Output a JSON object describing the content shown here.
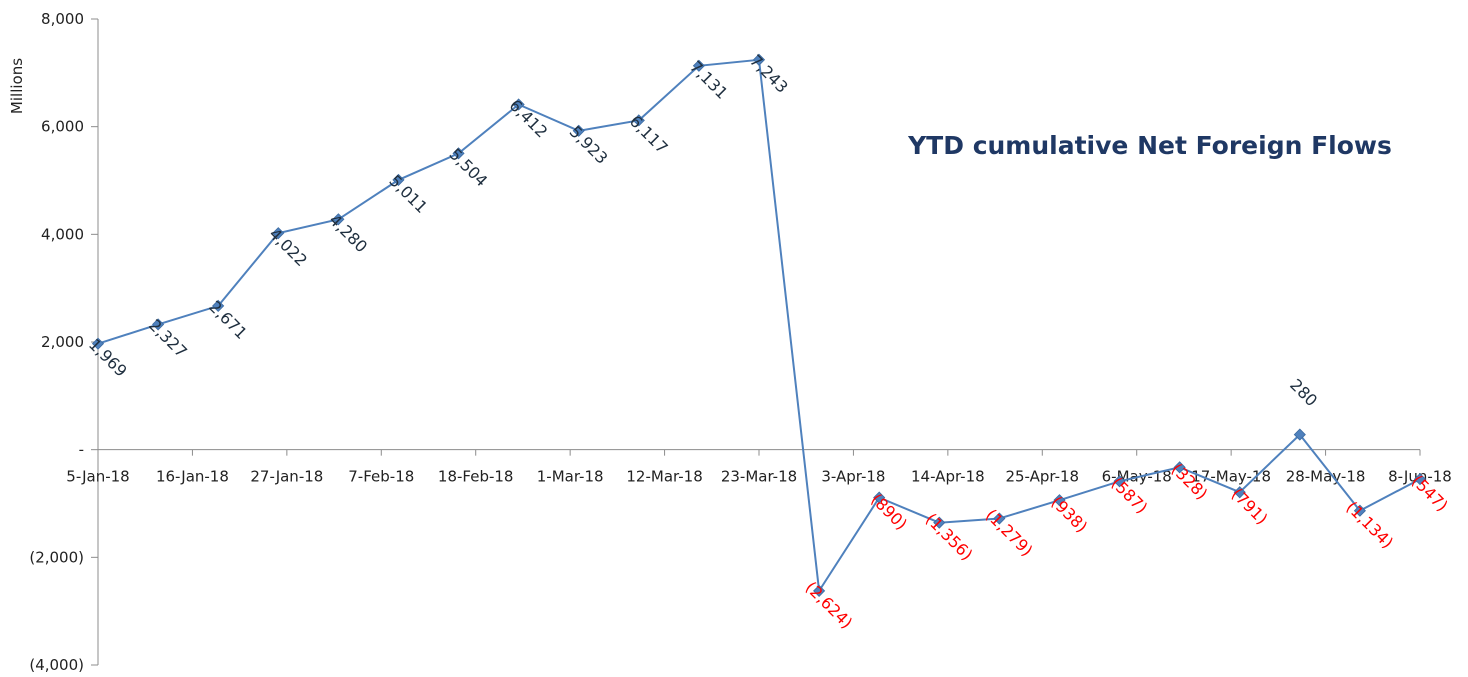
{
  "chart_data": {
    "type": "line",
    "title": "YTD cumulative Net Foreign Flows",
    "xlabel": "",
    "ylabel": "Millions",
    "ylim": [
      -4000,
      8000
    ],
    "y_ticks": [
      {
        "value": 8000,
        "label": "8,000"
      },
      {
        "value": 6000,
        "label": "6,000"
      },
      {
        "value": 4000,
        "label": "4,000"
      },
      {
        "value": 2000,
        "label": "2,000"
      },
      {
        "value": 0,
        "label": "-"
      },
      {
        "value": -2000,
        "label": "(2,000)"
      },
      {
        "value": -4000,
        "label": "(4,000)"
      }
    ],
    "x_ticks": [
      "5-Jan-18",
      "16-Jan-18",
      "27-Jan-18",
      "7-Feb-18",
      "18-Feb-18",
      "1-Mar-18",
      "12-Mar-18",
      "23-Mar-18",
      "3-Apr-18",
      "14-Apr-18",
      "25-Apr-18",
      "6-May-18",
      "17-May-18",
      "28-May-18",
      "8-Jun-18"
    ],
    "x_start": "5-Jan-18",
    "x_end": "8-Jun-18",
    "grid": false,
    "legend": "none",
    "line_color": "#4f81bd",
    "positive_label_color": "#1f2f3f",
    "negative_label_color": "#ff0000",
    "points": [
      {
        "x": "5-Jan-18",
        "y": 1969,
        "label": "1,969"
      },
      {
        "x": "12-Jan-18",
        "y": 2327,
        "label": "2,327"
      },
      {
        "x": "19-Jan-18",
        "y": 2671,
        "label": "2,671"
      },
      {
        "x": "26-Jan-18",
        "y": 4022,
        "label": "4,022"
      },
      {
        "x": "2-Feb-18",
        "y": 4280,
        "label": "4,280"
      },
      {
        "x": "9-Feb-18",
        "y": 5011,
        "label": "5,011"
      },
      {
        "x": "16-Feb-18",
        "y": 5504,
        "label": "5,504"
      },
      {
        "x": "23-Feb-18",
        "y": 6412,
        "label": "6,412"
      },
      {
        "x": "2-Mar-18",
        "y": 5923,
        "label": "5,923"
      },
      {
        "x": "9-Mar-18",
        "y": 6117,
        "label": "6,117"
      },
      {
        "x": "16-Mar-18",
        "y": 7131,
        "label": "7,131"
      },
      {
        "x": "23-Mar-18",
        "y": 7243,
        "label": "7,243"
      },
      {
        "x": "30-Mar-18",
        "y": -2624,
        "label": "(2,624)"
      },
      {
        "x": "6-Apr-18",
        "y": -890,
        "label": "(890)"
      },
      {
        "x": "13-Apr-18",
        "y": -1356,
        "label": "(1,356)"
      },
      {
        "x": "20-Apr-18",
        "y": -1279,
        "label": "(1,279)"
      },
      {
        "x": "27-Apr-18",
        "y": -938,
        "label": "(938)"
      },
      {
        "x": "4-May-18",
        "y": -587,
        "label": "(587)"
      },
      {
        "x": "11-May-18",
        "y": -328,
        "label": "(328)"
      },
      {
        "x": "18-May-18",
        "y": -791,
        "label": "(791)"
      },
      {
        "x": "25-May-18",
        "y": 280,
        "label": "280"
      },
      {
        "x": "1-Jun-18",
        "y": -1134,
        "label": "(1,134)"
      },
      {
        "x": "8-Jun-18",
        "y": -547,
        "label": "(547)"
      }
    ]
  }
}
